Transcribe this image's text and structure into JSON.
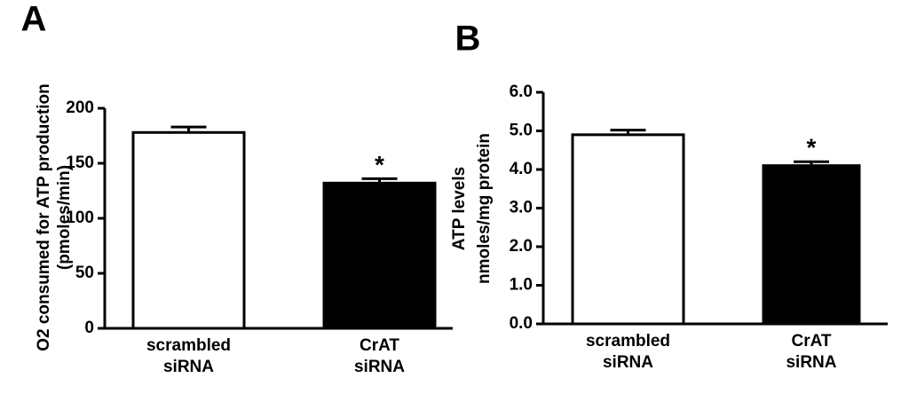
{
  "chart_data": [
    {
      "type": "bar",
      "panel": "A",
      "ylabel": [
        "O2 consumed for ATP production",
        "(pmoles/min)"
      ],
      "categories": [
        [
          "scrambled",
          "siRNA"
        ],
        [
          "CrAT",
          "siRNA"
        ]
      ],
      "values": [
        178,
        132
      ],
      "errors": [
        5,
        4
      ],
      "colors": [
        "#ffffff",
        "#000000"
      ],
      "significance_marker": "*",
      "ylim": [
        0,
        200
      ],
      "yticks": [
        0,
        50,
        100,
        150,
        200
      ]
    },
    {
      "type": "bar",
      "panel": "B",
      "ylabel": [
        "ATP levels",
        "nmoles/mg protein"
      ],
      "categories": [
        [
          "scrambled",
          "siRNA"
        ],
        [
          "CrAT",
          "siRNA"
        ]
      ],
      "values": [
        4.9,
        4.1
      ],
      "errors": [
        0.12,
        0.1
      ],
      "colors": [
        "#ffffff",
        "#000000"
      ],
      "significance_marker": "*",
      "ylim": [
        0,
        6
      ],
      "yticks": [
        {
          "value": 0,
          "label": "0.0"
        },
        {
          "value": 1,
          "label": "1.0"
        },
        {
          "value": 2,
          "label": "2.0"
        },
        {
          "value": 3,
          "label": "3.0"
        },
        {
          "value": 4,
          "label": "4.0"
        },
        {
          "value": 5,
          "label": "5.0"
        },
        {
          "value": 6,
          "label": "6.0"
        }
      ]
    }
  ]
}
